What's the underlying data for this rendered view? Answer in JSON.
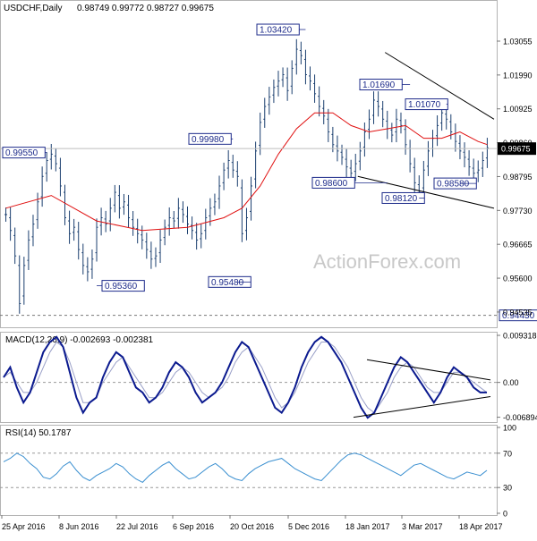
{
  "header": {
    "symbol": "USDCHF,Daily",
    "ohlc": "0.98749 0.99772 0.98727 0.99675"
  },
  "watermark": "ActionForex.com",
  "colors": {
    "candle": "#1b3f6f",
    "ma": "#e01010",
    "macd": "#0b1a8f",
    "signal": "#9aa0c8",
    "rsi": "#3a8fd0",
    "annotation_border": "#1d2b8a",
    "current_price_box": "#000000"
  },
  "chart_data": [
    {
      "type": "candlestick",
      "title": "USDCHF,Daily",
      "ohlc_label": "0.98749 0.99772 0.98727 0.99675",
      "y_ticks": [
        "1.03055",
        "1.01990",
        "1.00925",
        "0.99860",
        "0.98795",
        "0.97730",
        "0.96665",
        "0.95600",
        "0.94535"
      ],
      "ylim": [
        0.9428,
        1.0373
      ],
      "x_ticks": [
        "25 Apr 2016",
        "8 Jun 2016",
        "22 Jul 2016",
        "6 Sep 2016",
        "20 Oct 2016",
        "5 Dec 2016",
        "18 Jan 2017",
        "3 Mar 2017",
        "18 Apr 2017"
      ],
      "grid": false,
      "price_path": [
        [
          0,
          0.976
        ],
        [
          1,
          0.971
        ],
        [
          2,
          0.963
        ],
        [
          3,
          0.948
        ],
        [
          4,
          0.96
        ],
        [
          5,
          0.968
        ],
        [
          6,
          0.973
        ],
        [
          7,
          0.98
        ],
        [
          8,
          0.988
        ],
        [
          9,
          0.993
        ],
        [
          10,
          0.995
        ],
        [
          11,
          0.992
        ],
        [
          12,
          0.985
        ],
        [
          13,
          0.975
        ],
        [
          14,
          0.97
        ],
        [
          15,
          0.972
        ],
        [
          16,
          0.965
        ],
        [
          17,
          0.96
        ],
        [
          18,
          0.958
        ],
        [
          19,
          0.962
        ],
        [
          20,
          0.972
        ],
        [
          21,
          0.975
        ],
        [
          22,
          0.973
        ],
        [
          23,
          0.978
        ],
        [
          24,
          0.983
        ],
        [
          25,
          0.978
        ],
        [
          26,
          0.98
        ],
        [
          27,
          0.975
        ],
        [
          28,
          0.972
        ],
        [
          29,
          0.97
        ],
        [
          30,
          0.968
        ],
        [
          31,
          0.965
        ],
        [
          32,
          0.962
        ],
        [
          33,
          0.963
        ],
        [
          34,
          0.968
        ],
        [
          35,
          0.972
        ],
        [
          36,
          0.975
        ],
        [
          37,
          0.974
        ],
        [
          38,
          0.978
        ],
        [
          39,
          0.976
        ],
        [
          40,
          0.973
        ],
        [
          41,
          0.971
        ],
        [
          42,
          0.968
        ],
        [
          43,
          0.97
        ],
        [
          44,
          0.975
        ],
        [
          45,
          0.978
        ],
        [
          46,
          0.98
        ],
        [
          47,
          0.985
        ],
        [
          48,
          0.99
        ],
        [
          49,
          0.993
        ],
        [
          50,
          0.99
        ],
        [
          51,
          0.988
        ],
        [
          52,
          0.97
        ],
        [
          53,
          0.975
        ],
        [
          54,
          0.985
        ],
        [
          55,
          0.996
        ],
        [
          56,
          1.005
        ],
        [
          57,
          1.01
        ],
        [
          58,
          1.013
        ],
        [
          59,
          1.016
        ],
        [
          60,
          1.018
        ],
        [
          61,
          1.02
        ],
        [
          62,
          1.015
        ],
        [
          63,
          1.022
        ],
        [
          64,
          1.028
        ],
        [
          65,
          1.026
        ],
        [
          66,
          1.02
        ],
        [
          67,
          1.018
        ],
        [
          68,
          1.014
        ],
        [
          69,
          1.01
        ],
        [
          70,
          1.007
        ],
        [
          71,
          1.002
        ],
        [
          72,
          0.998
        ],
        [
          73,
          0.996
        ],
        [
          74,
          0.994
        ],
        [
          75,
          0.991
        ],
        [
          76,
          0.989
        ],
        [
          77,
          0.992
        ],
        [
          78,
          0.996
        ],
        [
          79,
          1.002
        ],
        [
          80,
          1.006
        ],
        [
          81,
          1.012
        ],
        [
          82,
          1.01
        ],
        [
          83,
          1.006
        ],
        [
          84,
          1.003
        ],
        [
          85,
          1.001
        ],
        [
          86,
          1.006
        ],
        [
          87,
          1.004
        ],
        [
          88,
          0.998
        ],
        [
          89,
          0.992
        ],
        [
          90,
          0.986
        ],
        [
          91,
          0.983
        ],
        [
          92,
          0.99
        ],
        [
          93,
          0.996
        ],
        [
          94,
          1.0
        ],
        [
          95,
          1.004
        ],
        [
          96,
          1.008
        ],
        [
          97,
          1.006
        ],
        [
          98,
          1.002
        ],
        [
          99,
          0.999
        ],
        [
          100,
          0.996
        ],
        [
          101,
          0.994
        ],
        [
          102,
          0.991
        ],
        [
          103,
          0.989
        ],
        [
          104,
          0.99
        ],
        [
          105,
          0.993
        ],
        [
          106,
          0.997
        ]
      ],
      "ma_path": [
        [
          0,
          0.978
        ],
        [
          10,
          0.982
        ],
        [
          20,
          0.974
        ],
        [
          30,
          0.971
        ],
        [
          40,
          0.972
        ],
        [
          48,
          0.975
        ],
        [
          52,
          0.978
        ],
        [
          56,
          0.985
        ],
        [
          60,
          0.995
        ],
        [
          64,
          1.003
        ],
        [
          68,
          1.008
        ],
        [
          72,
          1.008
        ],
        [
          76,
          1.004
        ],
        [
          80,
          1.002
        ],
        [
          84,
          1.003
        ],
        [
          88,
          1.004
        ],
        [
          92,
          1.0
        ],
        [
          96,
          1.0
        ],
        [
          100,
          1.002
        ],
        [
          104,
          0.999
        ],
        [
          106,
          0.998
        ]
      ],
      "annotations": [
        {
          "label": "1.03420",
          "value": 1.0342
        },
        {
          "label": "1.01690",
          "value": 1.0169
        },
        {
          "label": "1.01070",
          "value": 1.0107
        },
        {
          "label": "0.99980",
          "value": 0.9998
        },
        {
          "label": "0.99550",
          "value": 0.9955
        },
        {
          "label": "0.98600",
          "value": 0.986
        },
        {
          "label": "0.98580",
          "value": 0.9858
        },
        {
          "label": "0.98120",
          "value": 0.9812
        },
        {
          "label": "0.95360",
          "value": 0.9536
        },
        {
          "label": "0.95480",
          "value": 0.9548
        },
        {
          "label": "0.94430",
          "value": 0.9443
        }
      ],
      "current_price": {
        "label": "0.99675",
        "value": 0.99675
      },
      "trendlines": [
        {
          "name": "upper",
          "from": [
            84,
            1.027
          ],
          "to": [
            108,
            1.006
          ]
        },
        {
          "name": "lower",
          "from": [
            78,
            0.988
          ],
          "to": [
            108,
            0.978
          ]
        }
      ]
    },
    {
      "type": "line",
      "title": "MACD(12,26,9) -0.002693 -0.002381",
      "y_ticks": [
        "0.009318",
        "0.00",
        "-0.006894"
      ],
      "ylim": [
        -0.0075,
        0.0095
      ],
      "series": [
        {
          "name": "MACD",
          "values": [
            0.001,
            0.003,
            -0.001,
            -0.004,
            -0.002,
            0.002,
            0.006,
            0.008,
            0.009,
            0.007,
            0.002,
            -0.003,
            -0.006,
            -0.004,
            -0.003,
            0.001,
            0.004,
            0.006,
            0.005,
            0.002,
            -0.001,
            -0.002,
            -0.004,
            -0.003,
            -0.001,
            0.002,
            0.004,
            0.003,
            0.001,
            -0.002,
            -0.004,
            -0.003,
            -0.002,
            0.0,
            0.003,
            0.006,
            0.008,
            0.007,
            0.004,
            0.001,
            -0.002,
            -0.005,
            -0.006,
            -0.004,
            -0.001,
            0.003,
            0.006,
            0.008,
            0.009,
            0.008,
            0.006,
            0.004,
            0.001,
            -0.002,
            -0.005,
            -0.007,
            -0.006,
            -0.003,
            0.0,
            0.003,
            0.005,
            0.004,
            0.002,
            0.0,
            -0.002,
            -0.004,
            -0.002,
            0.001,
            0.003,
            0.002,
            0.001,
            -0.001,
            -0.002,
            -0.002
          ]
        },
        {
          "name": "Signal",
          "values": [
            0.001,
            0.002,
            0.0,
            -0.002,
            -0.002,
            0.0,
            0.003,
            0.006,
            0.008,
            0.007,
            0.004,
            0.0,
            -0.004,
            -0.004,
            -0.003,
            0.0,
            0.002,
            0.004,
            0.005,
            0.003,
            0.001,
            -0.001,
            -0.003,
            -0.003,
            -0.002,
            0.0,
            0.002,
            0.003,
            0.002,
            0.0,
            -0.002,
            -0.003,
            -0.002,
            -0.001,
            0.001,
            0.004,
            0.006,
            0.007,
            0.005,
            0.003,
            0.0,
            -0.003,
            -0.005,
            -0.004,
            -0.002,
            0.001,
            0.004,
            0.006,
            0.008,
            0.008,
            0.007,
            0.005,
            0.003,
            0.0,
            -0.003,
            -0.005,
            -0.006,
            -0.004,
            -0.002,
            0.001,
            0.003,
            0.004,
            0.003,
            0.001,
            -0.001,
            -0.002,
            -0.002,
            0.0,
            0.002,
            0.002,
            0.001,
            0.0,
            -0.001,
            -0.002
          ]
        }
      ]
    },
    {
      "type": "line",
      "title": "RSI(14) 50.1787",
      "y_ticks": [
        "100",
        "70",
        "30",
        "0"
      ],
      "ylim": [
        0,
        100
      ],
      "series": [
        {
          "name": "RSI",
          "values": [
            60,
            64,
            70,
            66,
            58,
            52,
            42,
            40,
            46,
            55,
            60,
            50,
            42,
            38,
            44,
            48,
            52,
            58,
            54,
            46,
            40,
            36,
            44,
            50,
            56,
            60,
            52,
            46,
            40,
            42,
            48,
            54,
            58,
            52,
            44,
            40,
            38,
            46,
            52,
            56,
            60,
            62,
            64,
            58,
            52,
            48,
            44,
            40,
            38,
            46,
            54,
            62,
            68,
            70,
            68,
            64,
            60,
            56,
            52,
            48,
            44,
            50,
            56,
            58,
            54,
            50,
            46,
            42,
            40,
            44,
            48,
            46,
            44,
            50
          ]
        }
      ]
    }
  ]
}
